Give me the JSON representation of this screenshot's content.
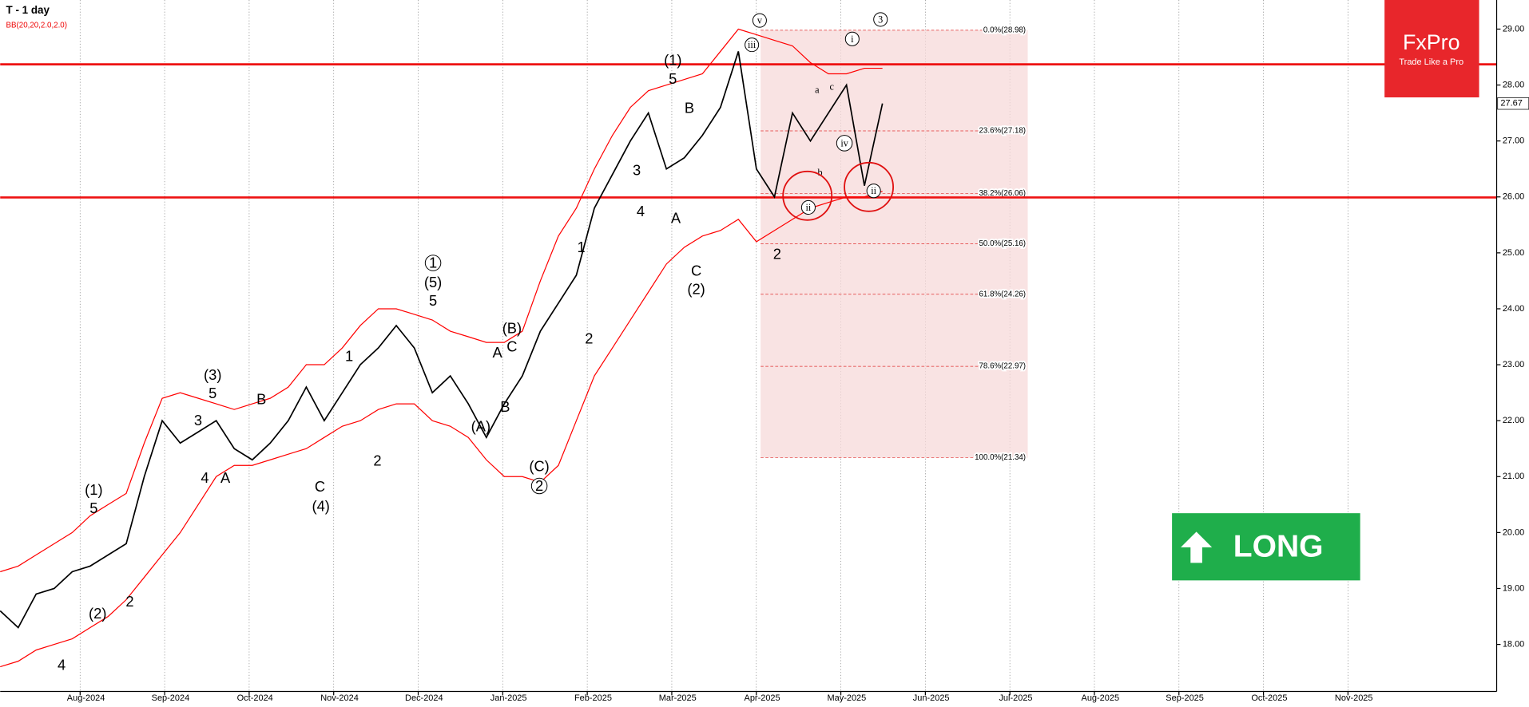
{
  "chart_data": {
    "type": "line",
    "title": "T - 1 day",
    "indicator": "BB(20,20,2.0,2.0)",
    "brand": "FxPro",
    "tagline": "Trade Like a Pro",
    "signal": "LONG",
    "xticks": [
      "Aug-2024",
      "Sep-2024",
      "Oct-2024",
      "Nov-2024",
      "Dec-2024",
      "Jan-2025",
      "Feb-2025",
      "Mar-2025",
      "Apr-2025",
      "May-2025",
      "Jun-2025",
      "Jul-2025",
      "Aug-2025",
      "Sep-2025",
      "Oct-2025",
      "Nov-2025"
    ],
    "ylim": [
      17.16,
      29.52
    ],
    "yticks": [
      {
        "value": 18,
        "label": "18.00"
      },
      {
        "value": 19,
        "label": "19.00"
      },
      {
        "value": 20,
        "label": "20.00"
      },
      {
        "value": 21,
        "label": "21.00"
      },
      {
        "value": 22,
        "label": "22.00"
      },
      {
        "value": 23,
        "label": "23.00"
      },
      {
        "value": 24,
        "label": "24.00"
      },
      {
        "value": 25,
        "label": "25.00"
      },
      {
        "value": 26,
        "label": "26.00"
      },
      {
        "value": 27,
        "label": "27.00"
      },
      {
        "value": 28,
        "label": "28.00"
      },
      {
        "value": 29,
        "label": "29.00"
      }
    ],
    "grid": true,
    "series": [
      {
        "name": "Close",
        "color": "#000000",
        "values": [
          18.6,
          18.3,
          18.9,
          19.0,
          19.3,
          19.4,
          19.6,
          19.8,
          21.0,
          22.0,
          21.6,
          21.8,
          22.0,
          21.5,
          21.3,
          21.6,
          22.0,
          22.6,
          22.0,
          22.5,
          23.0,
          23.3,
          23.7,
          23.3,
          22.5,
          22.8,
          22.3,
          21.7,
          22.3,
          22.8,
          23.6,
          24.1,
          24.6,
          25.8,
          26.4,
          27.0,
          27.5,
          26.5,
          26.7,
          27.1,
          27.6,
          28.6,
          26.5,
          26.0,
          27.5,
          27.0,
          27.5,
          28.0,
          26.2,
          27.67
        ]
      },
      {
        "name": "Upper band",
        "color": "#ff0000",
        "values": [
          19.3,
          19.4,
          19.6,
          19.8,
          20.0,
          20.3,
          20.5,
          20.7,
          21.6,
          22.4,
          22.5,
          22.4,
          22.3,
          22.2,
          22.3,
          22.4,
          22.6,
          23.0,
          23.0,
          23.3,
          23.7,
          24.0,
          24.0,
          23.9,
          23.8,
          23.6,
          23.5,
          23.4,
          23.4,
          23.6,
          24.5,
          25.3,
          25.8,
          26.5,
          27.1,
          27.6,
          27.9,
          28.0,
          28.1,
          28.2,
          28.6,
          29.0,
          28.9,
          28.8,
          28.7,
          28.4,
          28.2,
          28.2,
          28.3,
          28.3
        ]
      },
      {
        "name": "Lower band",
        "color": "#ff0000",
        "values": [
          17.6,
          17.7,
          17.9,
          18.0,
          18.1,
          18.3,
          18.5,
          18.8,
          19.2,
          19.6,
          20.0,
          20.5,
          21.0,
          21.2,
          21.2,
          21.3,
          21.4,
          21.5,
          21.7,
          21.9,
          22.0,
          22.2,
          22.3,
          22.3,
          22.0,
          21.9,
          21.7,
          21.3,
          21.0,
          21.0,
          20.9,
          21.2,
          22.0,
          22.8,
          23.3,
          23.8,
          24.3,
          24.8,
          25.1,
          25.3,
          25.4,
          25.6,
          25.2,
          25.4,
          25.6,
          25.8,
          25.9,
          26.0,
          26.0,
          26.1
        ]
      }
    ],
    "last_price": 27.67,
    "levels": [
      28.37,
      25.99
    ],
    "level_color": "#ee1111",
    "fib_levels": [
      {
        "label": "0.0%(28.98)",
        "value": 28.98
      },
      {
        "label": "23.6%(27.18)",
        "value": 27.18
      },
      {
        "label": "38.2%(26.06)",
        "value": 26.06
      },
      {
        "label": "50.0%(25.16)",
        "value": 25.16
      },
      {
        "label": "61.8%(24.26)",
        "value": 24.26
      },
      {
        "label": "78.6%(22.97)",
        "value": 22.97
      },
      {
        "label": "100.0%(21.34)",
        "value": 21.34
      }
    ],
    "annotations": [
      "(1)",
      "5",
      "B",
      "A",
      "C",
      "(2)",
      "3",
      "4",
      "1",
      "2",
      "(C)",
      "(B)",
      "C",
      "(A)",
      "(5)",
      "5",
      "(3)",
      "5",
      "3",
      "4",
      "A",
      "B",
      "C",
      "(4)",
      "(1)",
      "5",
      "(2)",
      "2",
      "4",
      "1",
      "2",
      "A",
      "B",
      "2",
      "a",
      "b",
      "c",
      "v",
      "i",
      "ii",
      "ii",
      "iv",
      "iii",
      "2",
      "1",
      "3"
    ]
  }
}
